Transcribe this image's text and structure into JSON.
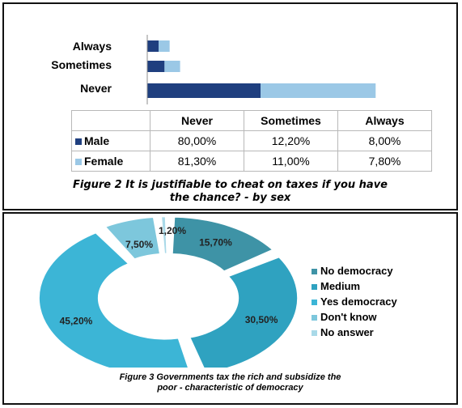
{
  "chart_data": [
    {
      "type": "bar",
      "orientation": "horizontal",
      "stacked": true,
      "categories": [
        "Always",
        "Sometimes",
        "Never"
      ],
      "series": [
        {
          "name": "Male",
          "values": [
            8.0,
            12.2,
            80.0
          ],
          "color": "#1f3f7f"
        },
        {
          "name": "Female",
          "values": [
            7.8,
            11.0,
            81.3
          ],
          "color": "#9bc8e6"
        }
      ],
      "table": {
        "header": [
          "Never",
          "Sometimes",
          "Always"
        ],
        "rows": [
          {
            "name": "Male",
            "values": [
              "80,00%",
              "12,20%",
              "8,00%"
            ]
          },
          {
            "name": "Female",
            "values": [
              "81,30%",
              "11,00%",
              "7,80%"
            ]
          }
        ]
      },
      "caption_line1": "Figure 2 It is justifiable to cheat on taxes if you have",
      "caption_line2": "the chance? - by sex"
    },
    {
      "type": "pie",
      "style": "doughnut-exploded",
      "slices": [
        {
          "name": "No democracy",
          "value": 15.7,
          "label": "15,70%",
          "color": "#3e93a6"
        },
        {
          "name": "Medium",
          "value": 30.5,
          "label": "30,50%",
          "color": "#2fa2c0"
        },
        {
          "name": "Yes democracy",
          "value": 45.2,
          "label": "45,20%",
          "color": "#3cb5d6"
        },
        {
          "name": "Don't know",
          "value": 7.5,
          "label": "7,50%",
          "color": "#7dc7dc"
        },
        {
          "name": "No answer",
          "value": 1.2,
          "label": "1,20%",
          "color": "#a9d9e8"
        }
      ],
      "legend_position": "right",
      "caption_line1": "Figure 3 Governments tax the rich and subsidize the",
      "caption_line2": "poor  - characteristic of democracy"
    }
  ]
}
